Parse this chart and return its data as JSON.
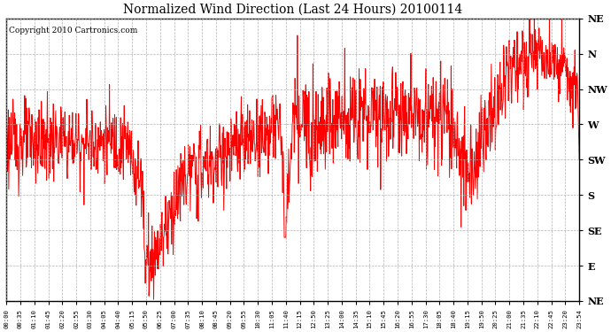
{
  "title": "Normalized Wind Direction (Last 24 Hours) 20100114",
  "copyright_text": "Copyright 2010 Cartronics.com",
  "line_color": "#FF0000",
  "bg_color": "#FFFFFF",
  "grid_color": "#AAAAAA",
  "title_color": "#000000",
  "y_labels_top_to_bottom": [
    "NE",
    "N",
    "NW",
    "W",
    "SW",
    "S",
    "SE",
    "E",
    "NE"
  ],
  "ytick_positions": [
    8,
    7,
    6,
    5,
    4,
    3,
    2,
    1,
    0
  ],
  "x_tick_labels": [
    "00:00",
    "00:35",
    "01:10",
    "01:45",
    "02:20",
    "02:55",
    "03:30",
    "04:05",
    "04:40",
    "05:15",
    "05:50",
    "06:25",
    "07:00",
    "07:35",
    "08:10",
    "08:45",
    "09:20",
    "09:55",
    "10:30",
    "11:05",
    "11:40",
    "12:15",
    "12:50",
    "13:25",
    "14:00",
    "14:35",
    "15:10",
    "15:45",
    "16:20",
    "16:55",
    "17:30",
    "18:05",
    "18:40",
    "19:15",
    "19:50",
    "20:25",
    "21:00",
    "21:35",
    "22:10",
    "22:45",
    "23:20",
    "23:54"
  ],
  "line_width": 0.7,
  "figsize": [
    6.9,
    3.75
  ],
  "dpi": 100
}
